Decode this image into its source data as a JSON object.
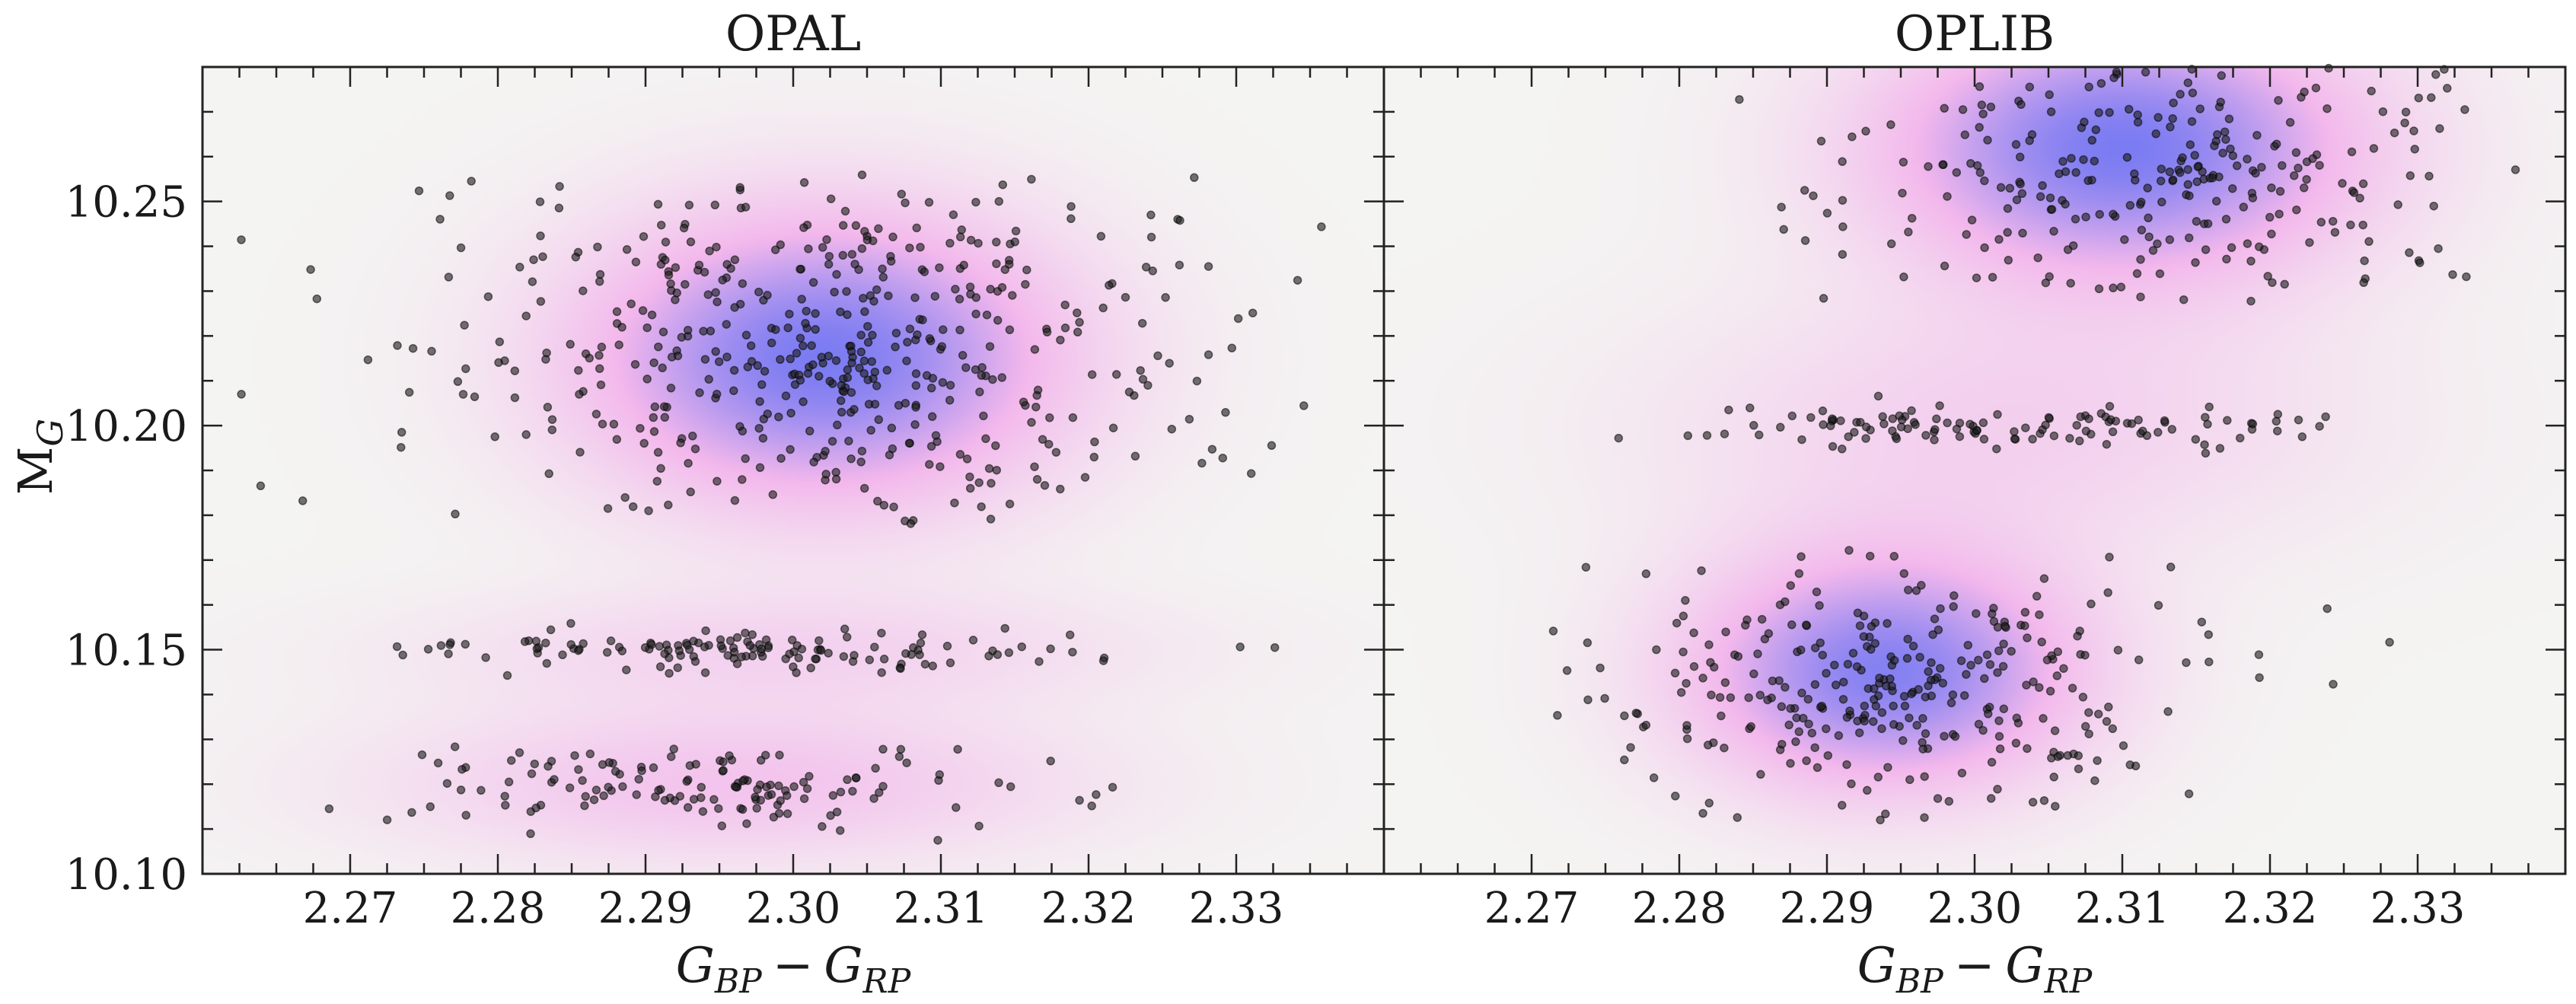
{
  "figure": {
    "ylabel_main": "M",
    "ylabel_sub": "G"
  },
  "chart_data": [
    {
      "type": "scatter",
      "title": "OPAL",
      "xlabel": {
        "main1": "G",
        "sub1": "BP",
        "minus": "−",
        "main2": "G",
        "sub2": "RP"
      },
      "ylabel": "M_G",
      "xlim": [
        2.26,
        2.34
      ],
      "ylim": [
        10.1,
        10.28
      ],
      "x_ticks": [
        "2.27",
        "2.28",
        "2.29",
        "2.30",
        "2.31",
        "2.32",
        "2.33"
      ],
      "x_tick_values": [
        2.27,
        2.28,
        2.29,
        2.3,
        2.31,
        2.32,
        2.33
      ],
      "y_ticks": [
        "10.10",
        "10.15",
        "10.20",
        "10.25"
      ],
      "y_tick_values": [
        10.1,
        10.15,
        10.2,
        10.25
      ],
      "grid": false,
      "colors": {
        "background": "#f4f4f2",
        "density_mid": "#f3b8ec",
        "density_core": "#7c7cf2",
        "points": "#1e1e1e"
      },
      "density_peaks": [
        {
          "x": 2.302,
          "y": 10.215,
          "sx": 0.011,
          "sy": 0.022,
          "weight": 1.0
        },
        {
          "x": 2.3,
          "y": 10.15,
          "sx": 0.017,
          "sy": 0.009,
          "weight": 0.22
        },
        {
          "x": 2.296,
          "y": 10.12,
          "sx": 0.016,
          "sy": 0.012,
          "weight": 0.35
        }
      ],
      "point_groups": [
        {
          "x_center": 2.302,
          "y_center": 10.216,
          "x_spread": 0.013,
          "y_spread": 0.021,
          "count": 560,
          "x_range": [
            2.262,
            2.337
          ],
          "y_range": [
            10.178,
            10.256
          ]
        },
        {
          "x_center": 2.298,
          "y_center": 10.15,
          "x_spread": 0.014,
          "y_spread": 0.0025,
          "count": 140,
          "x_range": [
            2.272,
            2.339
          ],
          "y_range": [
            10.139,
            10.156
          ]
        },
        {
          "x_center": 2.296,
          "y_center": 10.12,
          "x_spread": 0.012,
          "y_spread": 0.005,
          "count": 150,
          "x_range": [
            2.266,
            2.322
          ],
          "y_range": [
            10.107,
            10.13
          ]
        }
      ]
    },
    {
      "type": "scatter",
      "title": "OPLIB",
      "xlabel": {
        "main1": "G",
        "sub1": "BP",
        "minus": "−",
        "main2": "G",
        "sub2": "RP"
      },
      "ylabel": "",
      "xlim": [
        2.26,
        2.34
      ],
      "ylim": [
        10.1,
        10.28
      ],
      "x_ticks": [
        "2.27",
        "2.28",
        "2.29",
        "2.30",
        "2.31",
        "2.32",
        "2.33"
      ],
      "x_tick_values": [
        2.27,
        2.28,
        2.29,
        2.3,
        2.31,
        2.32,
        2.33
      ],
      "y_ticks": [],
      "y_tick_values": [
        10.1,
        10.15,
        10.2,
        10.25
      ],
      "grid": false,
      "colors": {
        "background": "#f4f4f2",
        "density_mid": "#f3b8ec",
        "density_core": "#7c7cf2",
        "points": "#1e1e1e"
      },
      "density_peaks": [
        {
          "x": 2.31,
          "y": 10.262,
          "sx": 0.011,
          "sy": 0.02,
          "weight": 1.0
        },
        {
          "x": 2.294,
          "y": 10.145,
          "sx": 0.009,
          "sy": 0.018,
          "weight": 0.95
        },
        {
          "x": 2.302,
          "y": 10.2,
          "sx": 0.016,
          "sy": 0.02,
          "weight": 0.25
        }
      ],
      "point_groups": [
        {
          "x_center": 2.312,
          "y_center": 10.255,
          "x_spread": 0.011,
          "y_spread": 0.014,
          "count": 300,
          "x_range": [
            2.284,
            2.339
          ],
          "y_range": [
            10.226,
            10.28
          ]
        },
        {
          "x_center": 2.302,
          "y_center": 10.2,
          "x_spread": 0.011,
          "y_spread": 0.0025,
          "count": 120,
          "x_range": [
            2.274,
            2.328
          ],
          "y_range": [
            10.193,
            10.208
          ]
        },
        {
          "x_center": 2.294,
          "y_center": 10.142,
          "x_spread": 0.01,
          "y_spread": 0.014,
          "count": 330,
          "x_range": [
            2.269,
            2.333
          ],
          "y_range": [
            10.111,
            10.182
          ]
        }
      ]
    }
  ]
}
